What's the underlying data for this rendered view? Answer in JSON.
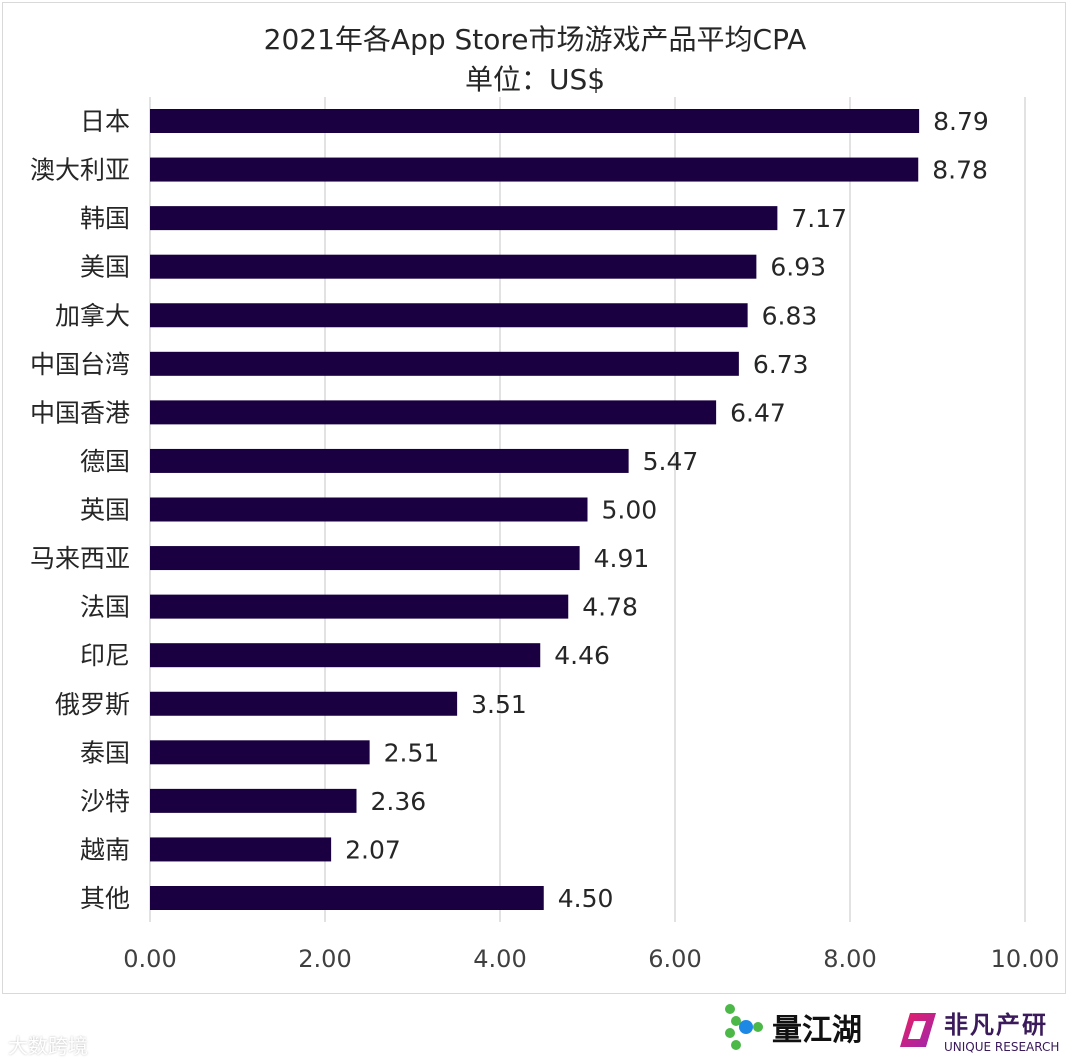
{
  "chart_data": {
    "type": "bar",
    "orientation": "horizontal",
    "title": "2021年各App Store市场游戏产品平均CPA",
    "subtitle": "单位：US$",
    "categories": [
      "日本",
      "澳大利亚",
      "韩国",
      "美国",
      "加拿大",
      "中国台湾",
      "中国香港",
      "德国",
      "英国",
      "马来西亚",
      "法国",
      "印尼",
      "俄罗斯",
      "泰国",
      "沙特",
      "越南",
      "其他"
    ],
    "values": [
      8.79,
      8.78,
      7.17,
      6.93,
      6.83,
      6.73,
      6.47,
      5.47,
      5.0,
      4.91,
      4.78,
      4.46,
      3.51,
      2.51,
      2.36,
      2.07,
      4.5
    ],
    "value_labels": [
      "8.79",
      "8.78",
      "7.17",
      "6.93",
      "6.83",
      "6.73",
      "6.47",
      "5.47",
      "5.00",
      "4.91",
      "4.78",
      "4.46",
      "3.51",
      "2.51",
      "2.36",
      "2.07",
      "4.50"
    ],
    "xlim": [
      0,
      10
    ],
    "xticks": [
      "0.00",
      "2.00",
      "4.00",
      "6.00",
      "8.00",
      "10.00"
    ],
    "grid": true,
    "bar_color": "#1a0040",
    "grid_color": "#d9d9d9"
  },
  "logos": {
    "liangjianghu": "量江湖",
    "unique_cn": "非凡产研",
    "unique_en": "UNIQUE RESEARCH",
    "watermark": "大数跨境"
  }
}
